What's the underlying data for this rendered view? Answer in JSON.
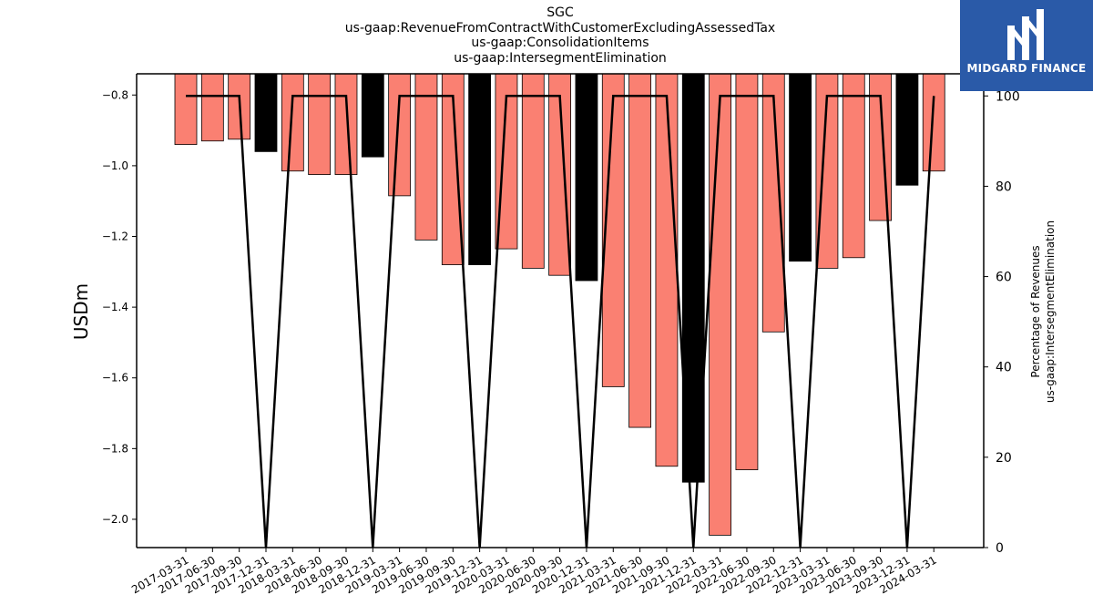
{
  "header": {
    "title_lines": [
      "SGC",
      "us-gaap:RevenueFromContractWithCustomerExcludingAssessedTax",
      "us-gaap:ConsolidationItems",
      "us-gaap:IntersegmentElimination"
    ]
  },
  "logo": {
    "text": "MIDGARD FINANCE"
  },
  "colors": {
    "bar_normal": "#fa8072",
    "bar_q4": "#000000",
    "line": "#000000"
  },
  "chart_data": {
    "type": "bar",
    "categories": [
      "2017-03-31",
      "2017-06-30",
      "2017-09-30",
      "2017-12-31",
      "2018-03-31",
      "2018-06-30",
      "2018-09-30",
      "2018-12-31",
      "2019-03-31",
      "2019-06-30",
      "2019-09-30",
      "2019-12-31",
      "2020-03-31",
      "2020-06-30",
      "2020-09-30",
      "2020-12-31",
      "2021-03-31",
      "2021-06-30",
      "2021-09-30",
      "2021-12-31",
      "2022-03-31",
      "2022-06-30",
      "2022-09-30",
      "2022-12-31",
      "2023-03-31",
      "2023-06-30",
      "2023-09-30",
      "2023-12-31",
      "2024-03-31"
    ],
    "series": [
      {
        "axis": "left",
        "values": [
          -0.94,
          -0.93,
          -0.925,
          -0.96,
          -1.015,
          -1.025,
          -1.025,
          -0.975,
          -1.085,
          -1.21,
          -1.28,
          -1.28,
          -1.235,
          -1.29,
          -1.31,
          -1.325,
          -1.625,
          -1.74,
          -1.85,
          -1.895,
          -2.045,
          -1.86,
          -1.47,
          -1.27,
          -1.29,
          -1.26,
          -1.155,
          -1.055,
          -1.015
        ],
        "highlight": [
          false,
          false,
          false,
          true,
          false,
          false,
          false,
          true,
          false,
          false,
          false,
          true,
          false,
          false,
          false,
          true,
          false,
          false,
          false,
          true,
          false,
          false,
          false,
          true,
          false,
          false,
          false,
          true,
          false
        ]
      },
      {
        "type": "line",
        "axis": "right",
        "values": [
          100,
          100,
          100,
          0,
          100,
          100,
          100,
          0,
          100,
          100,
          100,
          0,
          100,
          100,
          100,
          0,
          100,
          100,
          100,
          0,
          100,
          100,
          100,
          0,
          100,
          100,
          100,
          0,
          100
        ]
      }
    ],
    "ylabel": "USDm",
    "y2label_lines": [
      "Percentage of Revenues",
      "us-gaap:IntersegmentElimination"
    ],
    "ylim": [
      -2.08,
      -0.74
    ],
    "y_ticks": [
      -0.8,
      -1.0,
      -1.2,
      -1.4,
      -1.6,
      -1.8,
      -2.0
    ],
    "y_tick_labels": [
      "−0.8",
      "−1.0",
      "−1.2",
      "−1.4",
      "−1.6",
      "−1.8",
      "−2.0"
    ],
    "y2lim": [
      0,
      104.9
    ],
    "y2_ticks": [
      0,
      20,
      40,
      60,
      80,
      100
    ],
    "y2_tick_labels": [
      "0",
      "20",
      "40",
      "60",
      "80",
      "100"
    ],
    "grid": false,
    "legend": "none"
  }
}
